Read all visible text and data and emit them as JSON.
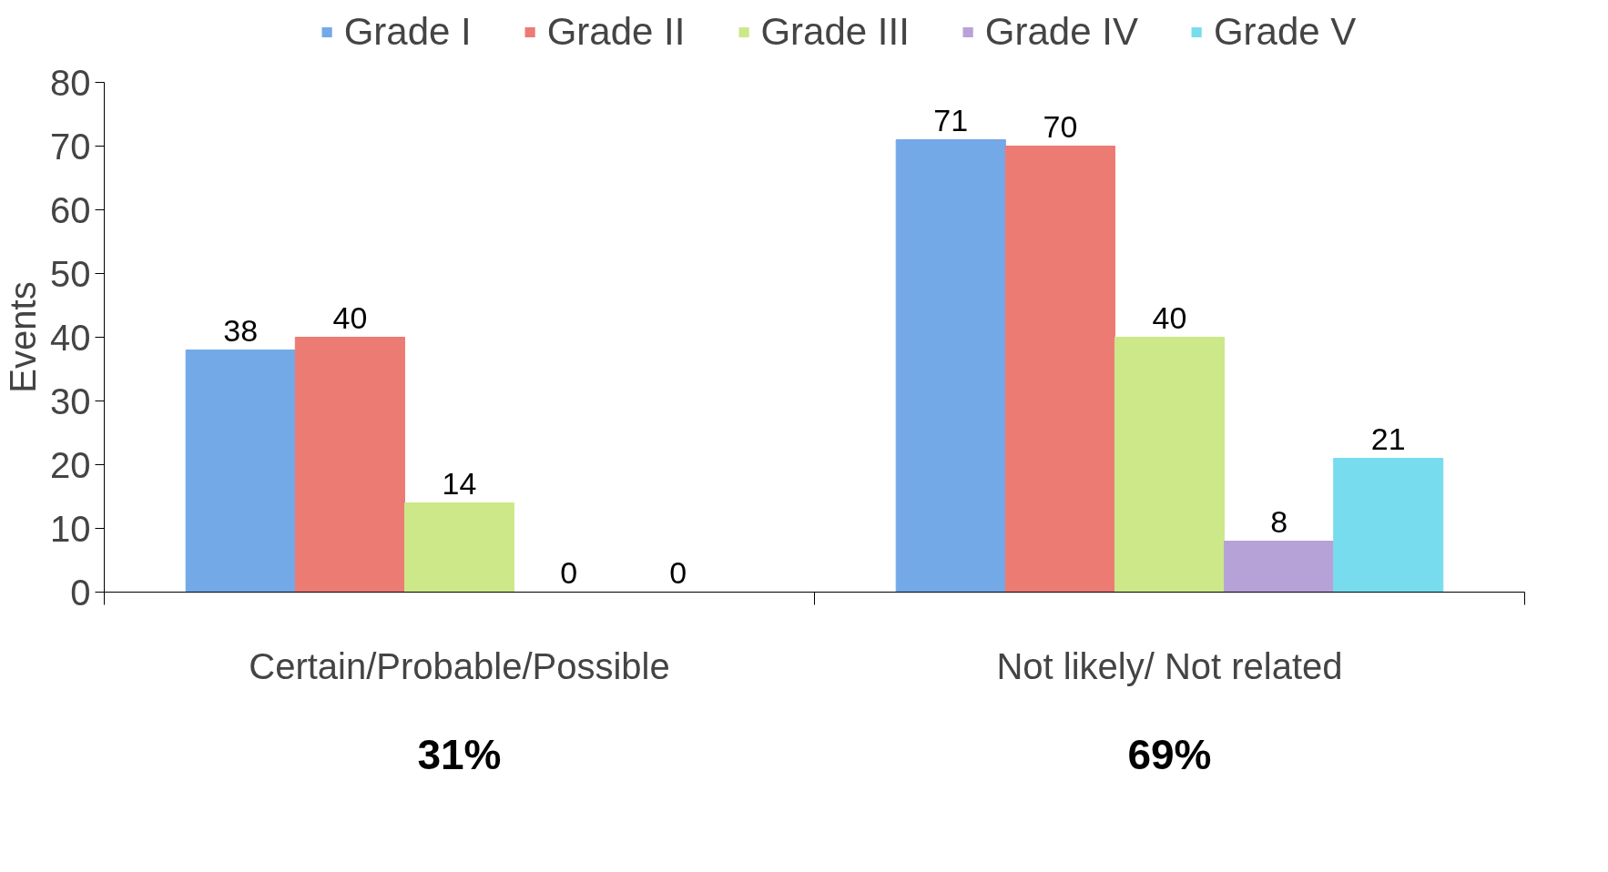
{
  "chart_data": {
    "type": "bar",
    "ylabel": "Events",
    "categories": [
      "Certain/Probable/Possible",
      "Not likely/ Not related"
    ],
    "series": [
      {
        "name": "Grade I",
        "color": "#74a9e8",
        "values": [
          38,
          71
        ]
      },
      {
        "name": "Grade II",
        "color": "#ec7b74",
        "values": [
          40,
          70
        ]
      },
      {
        "name": "Grade III",
        "color": "#cde889",
        "values": [
          14,
          40
        ]
      },
      {
        "name": "Grade IV",
        "color": "#b7a2d8",
        "values": [
          0,
          8
        ]
      },
      {
        "name": "Grade V",
        "color": "#78dcef",
        "values": [
          0,
          21
        ]
      }
    ],
    "ylim": [
      0,
      80
    ],
    "yticks": [
      0,
      10,
      20,
      30,
      40,
      50,
      60,
      70,
      80
    ],
    "data_labels": true,
    "grid": false,
    "legend": "top",
    "annotations": [
      "31%",
      "69%"
    ]
  }
}
